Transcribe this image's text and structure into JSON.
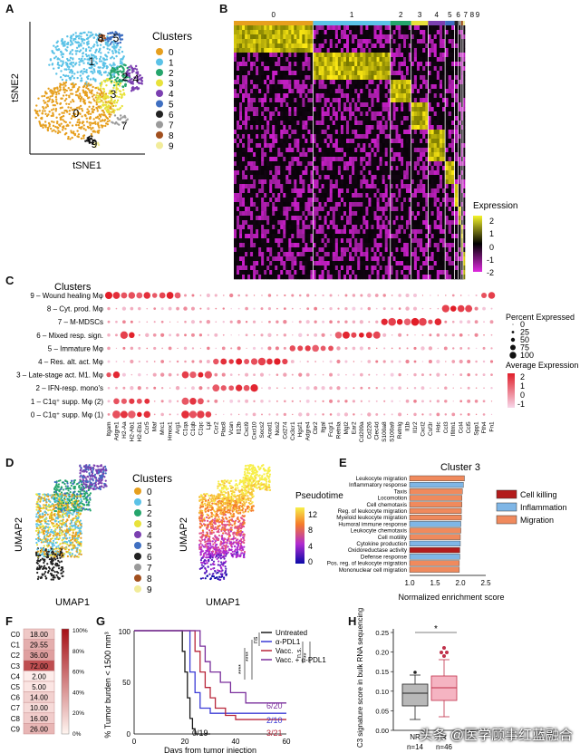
{
  "panel_labels": [
    "A",
    "B",
    "C",
    "D",
    "E",
    "F",
    "G",
    "H"
  ],
  "panelA": {
    "xlabel": "tSNE1",
    "ylabel": "tSNE2",
    "legend_title": "Clusters",
    "clusters": [
      {
        "id": "0",
        "color": "#e69f1e"
      },
      {
        "id": "1",
        "color": "#5bc2e7"
      },
      {
        "id": "2",
        "color": "#25a56c"
      },
      {
        "id": "3",
        "color": "#e8e23b"
      },
      {
        "id": "4",
        "color": "#7b3fb0"
      },
      {
        "id": "5",
        "color": "#3f6fc1"
      },
      {
        "id": "6",
        "color": "#222222"
      },
      {
        "id": "7",
        "color": "#9a9a9a"
      },
      {
        "id": "8",
        "color": "#a14f1e"
      },
      {
        "id": "9",
        "color": "#f2ec9a"
      }
    ],
    "cluster_labels": [
      "0",
      "1",
      "2",
      "3",
      "4",
      "5",
      "6",
      "7",
      "8",
      "9"
    ]
  },
  "panelB": {
    "cluster_headers": [
      "0",
      "1",
      "2",
      "3",
      "4",
      "5",
      "6",
      "7",
      "8",
      "9"
    ],
    "legend_title": "Expression",
    "legend_ticks": [
      "2",
      "1",
      "0",
      "-1",
      "-2"
    ]
  },
  "panelC": {
    "y_title": "Clusters",
    "rows": [
      "9 – Wound healing Mφ",
      "8 – Cyt. prod. Mφ",
      "7 – M-MDSCs",
      "6 – Mixed resp. sign.",
      "5 – Immature Mφ",
      "4 – Res. alt. act. Mφ",
      "3 – Late-stage act. M1. Mφ",
      "2 – IFN-resp. mono's",
      "1 – C1q⁺ supp. Mφ (2)",
      "0 – C1q⁺ supp. Mφ (1)"
    ],
    "genes": [
      "Itgam",
      "Adgre1",
      "H2-Aa",
      "H2-Ab1",
      "H2-Eb1",
      "Ccr5",
      "Maf",
      "Mrc1",
      "Hmox1",
      "Arg1",
      "C1qa",
      "C1qb",
      "C1qc",
      "Lpl",
      "Ccr2",
      "Plac8",
      "Vcan",
      "Il12b",
      "Cxcl9",
      "Cxcl10",
      "Socs2",
      "Acod1",
      "Nos2",
      "Cd274",
      "Cx3cr1",
      "Hgsf1",
      "Adgre4",
      "Cbr2",
      "Itgal",
      "Fcgr1",
      "Retnla",
      "Mgl2",
      "Ear2",
      "Cd209a",
      "Cd226",
      "Clec4d",
      "S100a8",
      "S100a9",
      "Retnlg",
      "Il1b",
      "Il1r2",
      "Cxcl2",
      "Csf3r",
      "Hdc",
      "Ccl3",
      "Ifitm1",
      "Ccl4",
      "Ccl5",
      "Spp1",
      "Fth4",
      "Fn1"
    ],
    "size_legend_title": "Percent Expressed",
    "size_legend": [
      "0",
      "25",
      "50",
      "75",
      "100"
    ],
    "color_legend_title": "Average Expression",
    "color_legend_ticks": [
      "2",
      "1",
      "0",
      "-1"
    ]
  },
  "panelD": {
    "xlabel": "UMAP1",
    "ylabel": "UMAP2",
    "legend_title": "Clusters",
    "clusters": [
      "0",
      "1",
      "2",
      "3",
      "4",
      "5",
      "6",
      "7",
      "8",
      "9"
    ],
    "pseudotime_title": "Pseudotime",
    "pseudotime_ticks": [
      "12",
      "8",
      "4",
      "0"
    ]
  },
  "panelE": {
    "title": "Cluster 3",
    "xlabel": "Normalized enrichment score",
    "xticks": [
      "1.0",
      "1.5",
      "2.0",
      "2.5"
    ],
    "legend": [
      {
        "name": "Cell killing",
        "color": "#b31b1b"
      },
      {
        "name": "Inflammation",
        "color": "#7fb6e6"
      },
      {
        "name": "Migration",
        "color": "#f08a5d"
      }
    ]
  },
  "panelF": {
    "rows": [
      "C0",
      "C1",
      "C2",
      "C3",
      "C4",
      "C5",
      "C6",
      "C7",
      "C8",
      "C9"
    ],
    "values": [
      "18.00",
      "29.55",
      "36.00",
      "72.00",
      "2.00",
      "5.00",
      "14.00",
      "10.00",
      "16.00",
      "26.00"
    ],
    "scale_ticks": [
      "100%",
      "80%",
      "60%",
      "40%",
      "20%",
      "0%"
    ]
  },
  "panelG": {
    "ylabel": "% Tumor burden < 1500 mm³",
    "xlabel": "Days from tumor injection",
    "yticks": [
      "0",
      "50",
      "100"
    ],
    "xticks": [
      "0",
      "20",
      "40",
      "60"
    ],
    "legend": [
      {
        "name": "Untreated",
        "color": "#1a1a1a"
      },
      {
        "name": "α-PDL1",
        "color": "#3b3bd6"
      },
      {
        "name": "Vacc.",
        "color": "#b8263a"
      },
      {
        "name": "Vacc. + α-PDL1",
        "color": "#7a2f9c"
      }
    ],
    "end_labels": [
      "6/20",
      "2/10",
      "3/21",
      "0/19"
    ],
    "sig": [
      "****",
      "****",
      "ns",
      "n.s.",
      "**"
    ]
  },
  "panelH": {
    "ylabel": "C3 signature score in bulk RNA sequencing",
    "yticks": [
      "0.00",
      "0.05",
      "0.10",
      "0.15",
      "0.20",
      "0.25"
    ],
    "groups": [
      {
        "name": "NR",
        "n": "n=14"
      },
      {
        "name": "R",
        "n": "n=46"
      }
    ],
    "sig": "*"
  },
  "watermark": "头条 @医学顾事红蓝融合"
}
